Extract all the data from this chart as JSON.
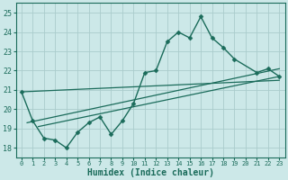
{
  "xlabel": "Humidex (Indice chaleur)",
  "xlim": [
    -0.5,
    23.5
  ],
  "ylim": [
    17.5,
    25.5
  ],
  "xticks": [
    0,
    1,
    2,
    3,
    4,
    5,
    6,
    7,
    8,
    9,
    10,
    11,
    12,
    13,
    14,
    15,
    16,
    17,
    18,
    19,
    20,
    21,
    22,
    23
  ],
  "yticks": [
    18,
    19,
    20,
    21,
    22,
    23,
    24,
    25
  ],
  "bg_color": "#cce8e8",
  "grid_color": "#aacccc",
  "line_color": "#1a6b5a",
  "main_line": {
    "x": [
      0,
      1,
      2,
      3,
      4,
      5,
      6,
      7,
      8,
      9,
      10,
      11,
      12,
      13,
      14,
      15,
      16,
      17,
      18,
      19,
      21,
      22,
      23
    ],
    "y": [
      20.9,
      19.4,
      18.5,
      18.4,
      18.0,
      18.8,
      19.3,
      19.6,
      18.7,
      19.4,
      20.3,
      21.9,
      22.0,
      23.5,
      24.0,
      23.7,
      24.8,
      23.7,
      23.2,
      22.6,
      21.9,
      22.1,
      21.7
    ]
  },
  "trend_lines": [
    {
      "x0": 0.0,
      "y0": 20.9,
      "x1": 23.0,
      "y1": 21.5
    },
    {
      "x0": 0.5,
      "y0": 19.3,
      "x1": 23.0,
      "y1": 22.1
    },
    {
      "x0": 1.5,
      "y0": 19.1,
      "x1": 23.0,
      "y1": 21.7
    }
  ]
}
